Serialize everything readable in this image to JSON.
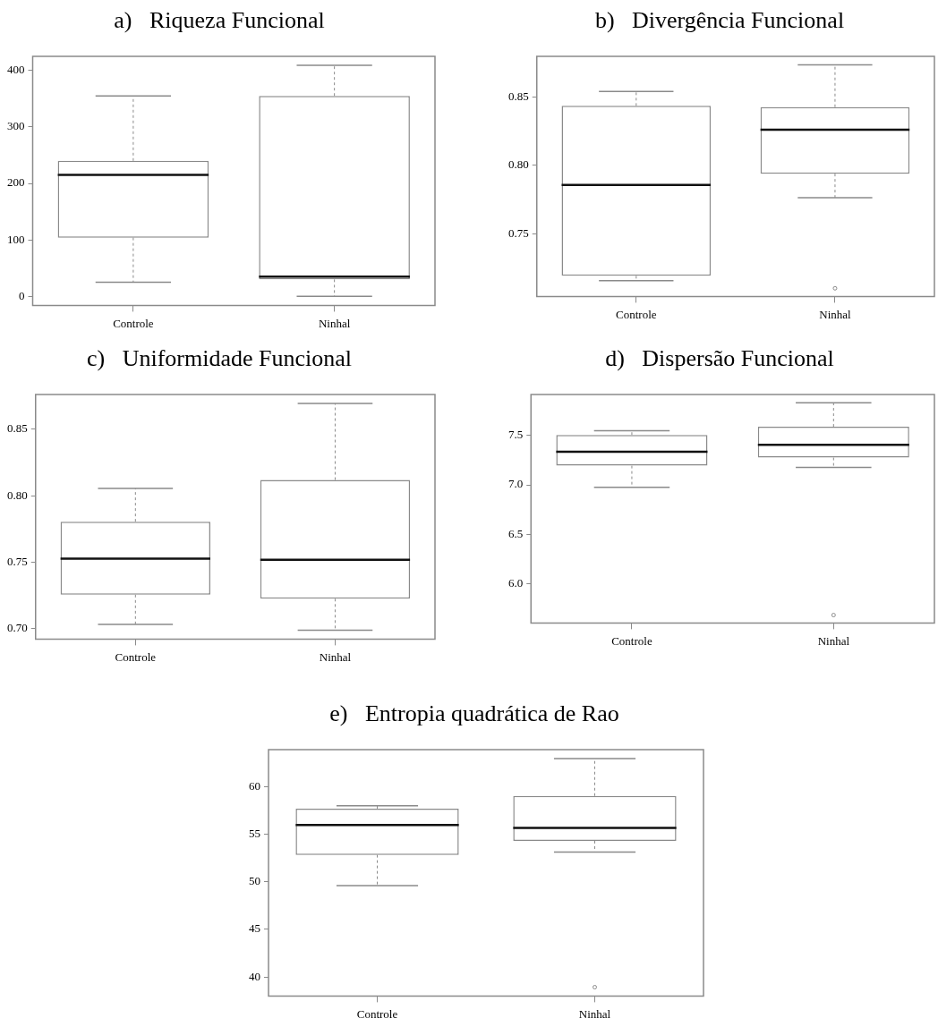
{
  "chart_data": [
    {
      "type": "box",
      "title": "a)   Riqueza Funcional",
      "categories": [
        "Controle",
        "Ninhal"
      ],
      "ylim": [
        -16,
        425
      ],
      "yticks": [
        0,
        100,
        200,
        300,
        400
      ],
      "grid": false,
      "boxes": [
        {
          "low": 25,
          "q1": 104,
          "median": 215,
          "q3": 240,
          "high": 355
        },
        {
          "low": 0,
          "q1": 30,
          "median": 35,
          "q3": 355,
          "high": 409
        }
      ]
    },
    {
      "type": "box",
      "title": "b)   Divergência Funcional",
      "categories": [
        "Controle",
        "Ninhal"
      ],
      "ylim": [
        0.704,
        0.88
      ],
      "yticks": [
        {
          "value": 0.75,
          "label": "0.75"
        },
        {
          "value": 0.8,
          "label": "0.80"
        },
        {
          "value": 0.85,
          "label": "0.85"
        }
      ],
      "grid": false,
      "boxes": [
        {
          "low": 0.7155,
          "q1": 0.7191,
          "median": 0.7857,
          "q3": 0.8437,
          "high": 0.8543
        },
        {
          "low": 0.7764,
          "q1": 0.794,
          "median": 0.8263,
          "q3": 0.8428,
          "high": 0.8737,
          "outliers": [
            0.71
          ]
        }
      ]
    },
    {
      "type": "box",
      "title": "c)   Uniformidade Funcional",
      "categories": [
        "Controle",
        "Ninhal"
      ],
      "ylim": [
        0.6923,
        0.876
      ],
      "yticks": [
        {
          "value": 0.7,
          "label": "0.70"
        },
        {
          "value": 0.75,
          "label": "0.75"
        },
        {
          "value": 0.8,
          "label": "0.80"
        },
        {
          "value": 0.85,
          "label": "0.85"
        }
      ],
      "grid": false,
      "boxes": [
        {
          "low": 0.7034,
          "q1": 0.7256,
          "median": 0.7527,
          "q3": 0.7805,
          "high": 0.8054
        },
        {
          "low": 0.6989,
          "q1": 0.7226,
          "median": 0.7518,
          "q3": 0.8118,
          "high": 0.8692
        }
      ]
    },
    {
      "type": "box",
      "title": "d)   Dispersão Funcional",
      "categories": [
        "Controle",
        "Ninhal"
      ],
      "ylim": [
        5.6,
        7.916
      ],
      "yticks": [
        {
          "value": 6,
          "label": "6.0"
        },
        6.5,
        {
          "value": 7,
          "label": "7.0"
        },
        7.5
      ],
      "grid": false,
      "boxes": [
        {
          "low": 6.976,
          "q1": 7.194,
          "median": 7.335,
          "q3": 7.506,
          "high": 7.549
        },
        {
          "low": 7.178,
          "q1": 7.276,
          "median": 7.405,
          "q3": 7.589,
          "high": 7.831,
          "outliers": [
            5.68
          ]
        }
      ]
    },
    {
      "type": "box",
      "title": "e)   Entropia quadrática de Rao",
      "categories": [
        "Controle",
        "Ninhal"
      ],
      "ylim": [
        38.01,
        63.88
      ],
      "yticks": [
        40,
        45,
        50,
        55,
        60
      ],
      "grid": false,
      "boxes": [
        {
          "low": 49.61,
          "q1": 52.83,
          "median": 55.96,
          "q3": 57.69,
          "high": 57.98
        },
        {
          "low": 53.13,
          "q1": 54.3,
          "median": 55.67,
          "q3": 59.02,
          "high": 62.93,
          "outliers": [
            38.94
          ]
        }
      ]
    }
  ]
}
